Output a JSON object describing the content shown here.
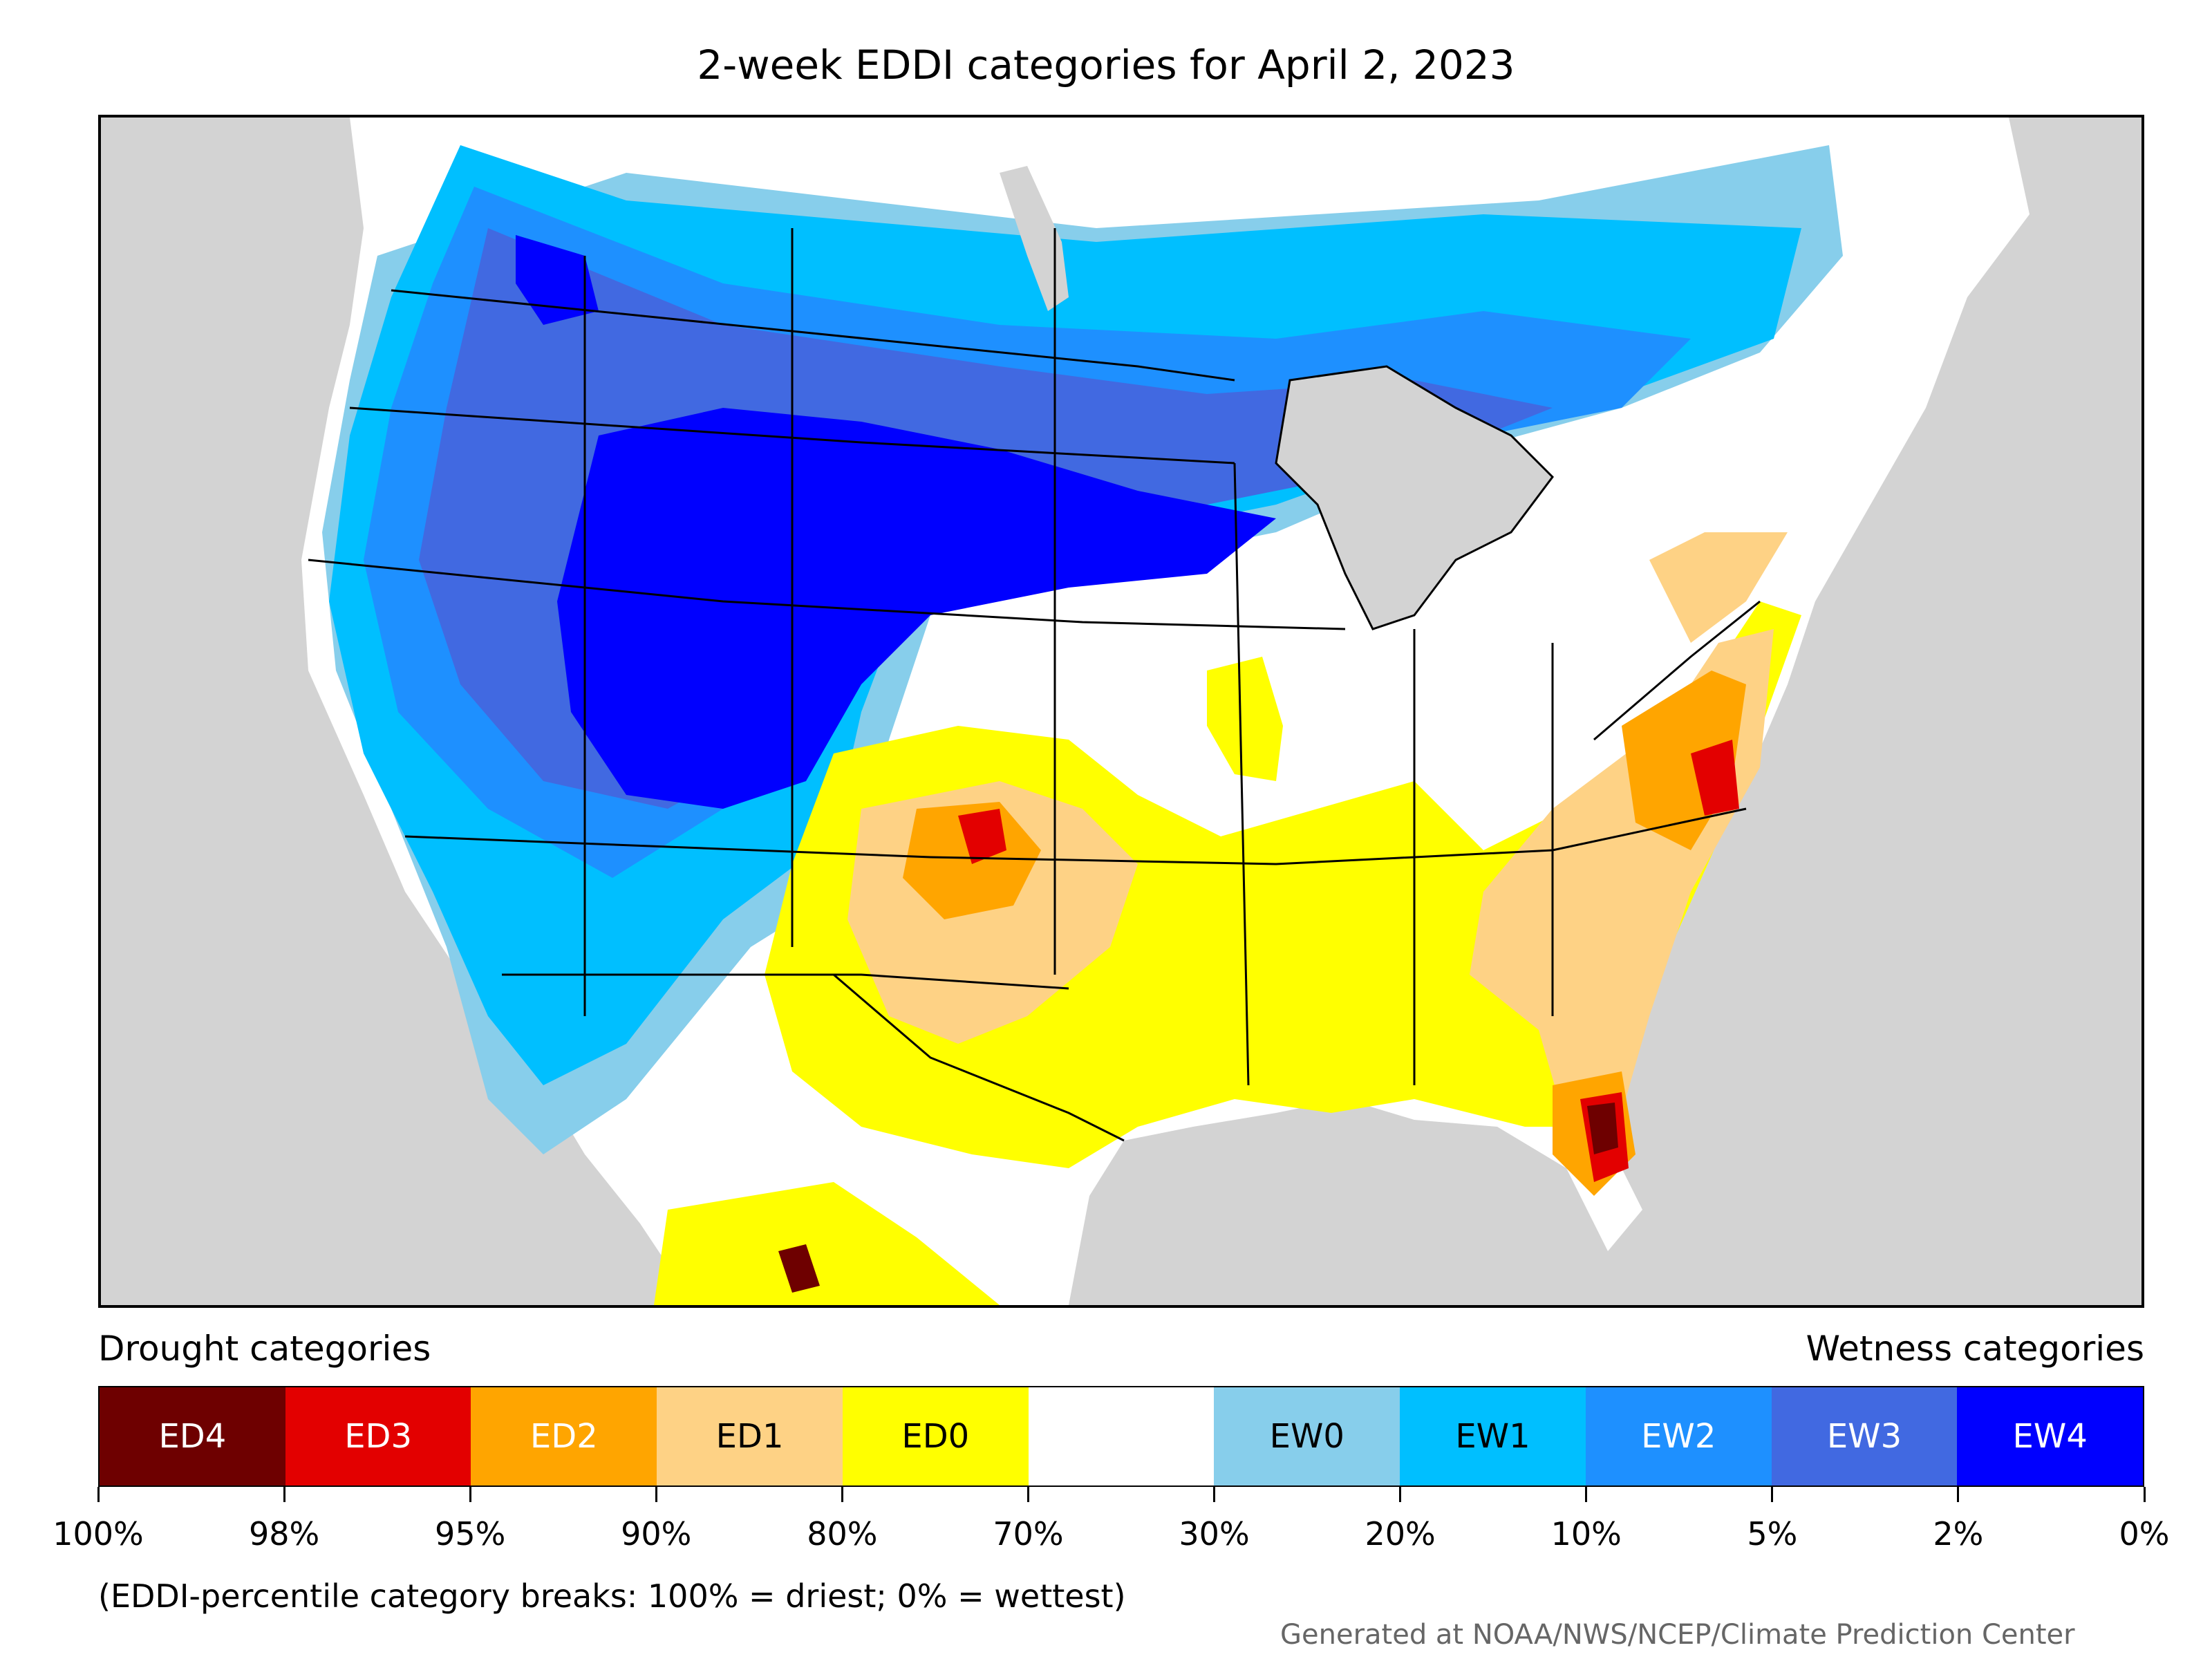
{
  "title": "2-week EDDI categories for April 2, 2023",
  "legend": {
    "left_heading": "Drought categories",
    "right_heading": "Wetness categories",
    "categories": [
      {
        "label": "ED4",
        "color": "#6e0000",
        "text_color": "#ffffff"
      },
      {
        "label": "ED3",
        "color": "#e30000",
        "text_color": "#ffffff"
      },
      {
        "label": "ED2",
        "color": "#ffa500",
        "text_color": "#ffffff"
      },
      {
        "label": "ED1",
        "color": "#fed285",
        "text_color": "#000000"
      },
      {
        "label": "ED0",
        "color": "#ffff00",
        "text_color": "#000000"
      },
      {
        "label": "",
        "color": "#ffffff",
        "text_color": "#000000"
      },
      {
        "label": "EW0",
        "color": "#87ceeb",
        "text_color": "#000000"
      },
      {
        "label": "EW1",
        "color": "#00bfff",
        "text_color": "#000000"
      },
      {
        "label": "EW2",
        "color": "#1e90ff",
        "text_color": "#ffffff"
      },
      {
        "label": "EW3",
        "color": "#4169e1",
        "text_color": "#ffffff"
      },
      {
        "label": "EW4",
        "color": "#0000ff",
        "text_color": "#ffffff"
      }
    ],
    "breaks": [
      "100%",
      "98%",
      "95%",
      "90%",
      "80%",
      "70%",
      "30%",
      "20%",
      "10%",
      "5%",
      "2%",
      "0%"
    ]
  },
  "note": "(EDDI-percentile category breaks: 100% = driest; 0% = wettest)",
  "credit": "Generated at NOAA/NWS/NCEP/Climate Prediction Center",
  "map_colors": {
    "ocean": "#d3d3d3",
    "land": "#ffffff",
    "lake": "#d3d3d3",
    "border": "#000000"
  }
}
